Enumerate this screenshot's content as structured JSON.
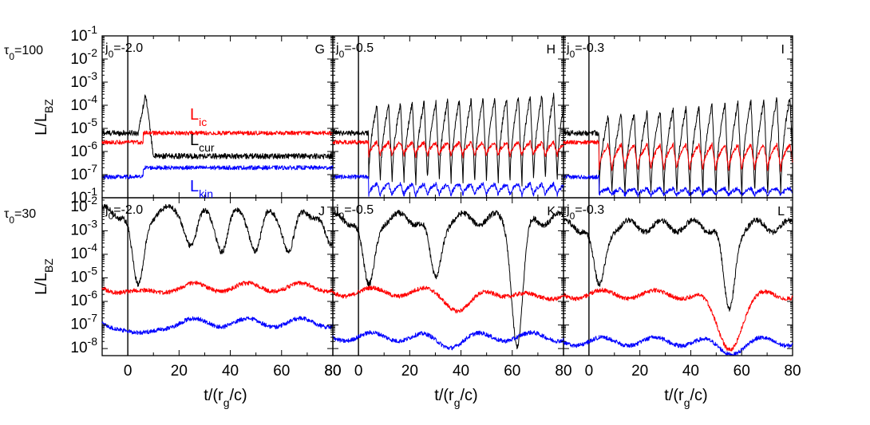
{
  "figure": {
    "row_labels": [
      "τ0=100",
      "τ0=30"
    ],
    "xlabel": "t/(rg/c)",
    "ylabel": "L/LBZ",
    "x_tick_labels": [
      "0",
      "20",
      "40",
      "60",
      "80"
    ],
    "y_tick_labels_top": [
      "10-1",
      "10-2",
      "10-3",
      "10-4",
      "10-5",
      "10-6",
      "10-7",
      "10-1"
    ],
    "y_tick_labels_bottom": [
      "10-2",
      "10-3",
      "10-4",
      "10-5",
      "10-6",
      "10-7",
      "10-8"
    ],
    "legend_labels": {
      "ic": "Lic",
      "cur": "Lcur",
      "kin": "Lkin"
    },
    "colors": {
      "ic": "#ff0000",
      "cur": "#000000",
      "kin": "#0000ff"
    }
  },
  "chart_data": [
    {
      "type": "line",
      "panel": "G",
      "j0": "j0=-2.0",
      "row": "τ0=100",
      "xlim": [
        -10,
        80
      ],
      "ylim_log10": [
        -8,
        -1
      ],
      "yscale": "log",
      "series": [
        {
          "name": "Lcur",
          "shape": "spike_then_flat",
          "before_log": -5.2,
          "peak_x": 7,
          "peak_log": -3.5,
          "after_log": -6.2
        },
        {
          "name": "Lic",
          "shape": "step",
          "before_log": -5.6,
          "step_x": 6,
          "after_log": -5.2
        },
        {
          "name": "Lkin",
          "shape": "step",
          "before_log": -7.1,
          "step_x": 6,
          "after_log": -6.7
        }
      ]
    },
    {
      "type": "line",
      "panel": "H",
      "j0": "j0=-0.5",
      "row": "τ0=100",
      "xlim": [
        -10,
        80
      ],
      "ylim_log10": [
        -8,
        -1
      ],
      "yscale": "log",
      "series": [
        {
          "name": "Lcur",
          "shape": "oscillating",
          "before_log": -5.2,
          "start_x": 4,
          "period": 4.6,
          "peak_log": -4.0,
          "trough_log": -7.4,
          "grow_to": -3.5
        },
        {
          "name": "Lic",
          "shape": "oscillating",
          "before_log": -5.6,
          "start_x": 4,
          "period": 4.6,
          "peak_log": -5.6,
          "trough_log": -6.2
        },
        {
          "name": "Lkin",
          "shape": "oscillating",
          "before_log": -7.1,
          "start_x": 4,
          "period": 4.6,
          "peak_log": -7.4,
          "trough_log": -7.9
        }
      ]
    },
    {
      "type": "line",
      "panel": "I",
      "j0": "j0=-0.3",
      "row": "τ0=100",
      "xlim": [
        -10,
        80
      ],
      "ylim_log10": [
        -8,
        -1
      ],
      "yscale": "log",
      "series": [
        {
          "name": "Lcur",
          "shape": "oscillating",
          "before_log": -5.2,
          "start_x": 4,
          "period": 5.1,
          "peak_log": -4.5,
          "trough_log": -7.9,
          "grow_to": -3.6
        },
        {
          "name": "Lic",
          "shape": "oscillating",
          "before_log": -5.6,
          "start_x": 4,
          "period": 5.1,
          "peak_log": -5.7,
          "trough_log": -6.8
        },
        {
          "name": "Lkin",
          "shape": "oscillating",
          "before_log": -7.1,
          "start_x": 4,
          "period": 5.1,
          "peak_log": -7.6,
          "trough_log": -7.9
        }
      ]
    },
    {
      "type": "line",
      "panel": "J",
      "j0": "j0=-2.0",
      "row": "τ0=30",
      "xlim": [
        -10,
        80
      ],
      "ylim_log10": [
        -8.3,
        -1.6
      ],
      "yscale": "log",
      "series": [
        {
          "name": "Lcur",
          "shape": "dips",
          "base_log": -2.2,
          "dips": [
            [
              4,
              -5.5
            ],
            [
              25,
              -3.6
            ],
            [
              37,
              -3.8
            ],
            [
              50,
              -3.8
            ],
            [
              63,
              -3.9
            ],
            [
              79,
              -3.8
            ]
          ]
        },
        {
          "name": "Lic",
          "shape": "bumpy",
          "base_log": -5.4,
          "dips": [
            [
              5,
              -5.7
            ]
          ]
        },
        {
          "name": "Lkin",
          "shape": "bumpy",
          "base_log": -6.9,
          "dips": [
            [
              5,
              -7.5
            ]
          ]
        }
      ]
    },
    {
      "type": "line",
      "panel": "K",
      "j0": "j0=-0.5",
      "row": "τ0=30",
      "xlim": [
        -10,
        80
      ],
      "ylim_log10": [
        -8.3,
        -1.6
      ],
      "yscale": "log",
      "series": [
        {
          "name": "Lcur",
          "shape": "dips",
          "base_log": -2.5,
          "dips": [
            [
              4,
              -5.5
            ],
            [
              30,
              -5.1
            ],
            [
              62,
              -7.8
            ]
          ]
        },
        {
          "name": "Lic",
          "shape": "bumpy",
          "base_log": -5.6,
          "dips": [
            [
              40,
              -6.3
            ],
            [
              70,
              -5.9
            ]
          ]
        },
        {
          "name": "Lkin",
          "shape": "bumpy",
          "base_log": -7.5,
          "dips": [
            [
              35,
              -7.8
            ]
          ]
        }
      ]
    },
    {
      "type": "line",
      "panel": "L",
      "j0": "j0=-0.3",
      "row": "τ0=30",
      "xlim": [
        -10,
        80
      ],
      "ylim_log10": [
        -8.3,
        -1.6
      ],
      "yscale": "log",
      "series": [
        {
          "name": "Lcur",
          "shape": "dips",
          "base_log": -2.8,
          "dips": [
            [
              4,
              -5.5
            ],
            [
              55,
              -6.5
            ]
          ]
        },
        {
          "name": "Lic",
          "shape": "bumpy",
          "base_log": -5.7,
          "dips": [
            [
              55,
              -7.9
            ]
          ]
        },
        {
          "name": "Lkin",
          "shape": "bumpy",
          "base_log": -7.7,
          "dips": [
            [
              55,
              -8.1
            ]
          ]
        }
      ]
    }
  ]
}
